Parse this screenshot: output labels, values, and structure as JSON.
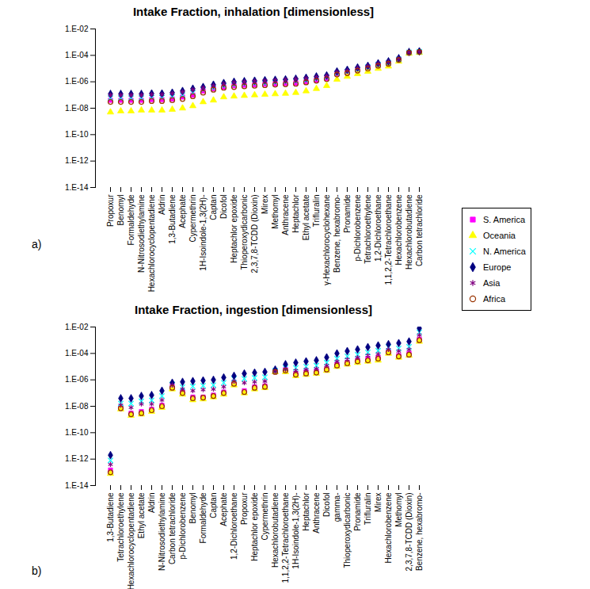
{
  "chart_data": [
    {
      "type": "scatter",
      "title": "Intake Fraction, inhalation [dimensionless]",
      "annotations": [
        "a)"
      ],
      "log": "y",
      "legend": "right",
      "ylim": [
        1e-14,
        0.01
      ],
      "yticks": [
        {
          "value": 1e-14,
          "label": "1.E-14"
        },
        {
          "value": 1e-12,
          "label": "1.E-12"
        },
        {
          "value": 1e-10,
          "label": "1.E-10"
        },
        {
          "value": 1e-08,
          "label": "1.E-08"
        },
        {
          "value": 1e-06,
          "label": "1.E-06"
        },
        {
          "value": 0.0001,
          "label": "1.E-04"
        },
        {
          "value": 0.01,
          "label": "1.E-02"
        }
      ],
      "categories": [
        "Propoxur",
        "Benomyl",
        "Formaldehyde",
        "N-Nitrosodiethylamine",
        "Hexachlorocyclopentadiene",
        "Aldrin",
        "1,3-Butadiene",
        "Acephate",
        "Cypermethrin",
        "1H-Isoindole-1,3(2H)-",
        "Captan",
        "Dicofol",
        "Heptachlor epoxide",
        "Thioperoxydicarbonic",
        "2,3,7,8-TCDD (Dioxin)",
        "Mirex",
        "Methomyl",
        "Anthracene",
        "Heptachlor",
        "Ethyl acetate",
        "Trifluralin",
        "γ-Hexachlorocyclohexane",
        "Benzene, hexabromo-",
        "Pronamide",
        "p-Dichlorobenzene",
        "Tetrachloroethylene",
        "1,2-Dichloroethane",
        "1,1,2,2-Tetrachloroethane",
        "Hexachlorobenzene",
        "Hexachlorobutadiene",
        "Carbon tetrachloride"
      ],
      "series": [
        {
          "name": "S. America",
          "color": "#ff00ff",
          "marker": "square",
          "values": [
            4e-08,
            4e-08,
            4e-08,
            4e-08,
            4.5e-08,
            4.5e-08,
            5e-08,
            7e-08,
            1e-07,
            2e-07,
            3e-07,
            4e-07,
            5e-07,
            5.5e-07,
            6e-07,
            6.5e-07,
            7e-07,
            7.5e-07,
            8e-07,
            1e-06,
            1.3e-06,
            1.8e-06,
            4e-06,
            5e-06,
            8e-06,
            1.1e-05,
            1.7e-05,
            2.5e-05,
            5e-05,
            0.00016,
            0.00018
          ]
        },
        {
          "name": "Oceania",
          "color": "#ffff00",
          "marker": "triangle",
          "values": [
            5e-09,
            6e-09,
            6e-09,
            7e-09,
            7e-09,
            7e-09,
            8e-09,
            1e-08,
            1.5e-08,
            3e-08,
            4e-08,
            7e-08,
            8e-08,
            9e-08,
            1e-07,
            1.1e-07,
            1.2e-07,
            1.3e-07,
            1.5e-07,
            2e-07,
            3e-07,
            5e-07,
            1.5e-06,
            2.5e-06,
            4e-06,
            6e-06,
            1e-05,
            1.5e-05,
            3.5e-05,
            0.00014,
            0.00016
          ]
        },
        {
          "name": "N. America",
          "color": "#00ffff",
          "marker": "x",
          "values": [
            6e-08,
            6e-08,
            6e-08,
            6e-08,
            6.5e-08,
            6.5e-08,
            7.5e-08,
            1e-07,
            1.5e-07,
            2.5e-07,
            3.5e-07,
            5e-07,
            6e-07,
            7e-07,
            7.5e-07,
            8e-07,
            9e-07,
            1e-06,
            1.1e-06,
            1.3e-06,
            1.7e-06,
            2.2e-06,
            4.5e-06,
            6e-06,
            9e-06,
            1.3e-05,
            2e-05,
            2.8e-05,
            5e-05,
            0.00017,
            0.00019
          ]
        },
        {
          "name": "Europe",
          "color": "#000080",
          "marker": "diamond",
          "values": [
            1.2e-07,
            1.2e-07,
            1.2e-07,
            1.2e-07,
            1.3e-07,
            1.3e-07,
            1.5e-07,
            2e-07,
            3e-07,
            4e-07,
            6e-07,
            8e-07,
            1e-06,
            1.1e-06,
            1.2e-06,
            1.3e-06,
            1.4e-06,
            1.5e-06,
            1.7e-06,
            2e-06,
            2.5e-06,
            3e-06,
            6e-06,
            8e-06,
            1.2e-05,
            1.6e-05,
            2.5e-05,
            3.5e-05,
            6e-05,
            0.00018,
            0.0002
          ]
        },
        {
          "name": "Asia",
          "color": "#800080",
          "marker": "asterisk",
          "values": [
            1e-07,
            1e-07,
            1e-07,
            1e-07,
            1.1e-07,
            1.1e-07,
            1.3e-07,
            1.7e-07,
            2.5e-07,
            3.5e-07,
            5e-07,
            7e-07,
            9e-07,
            1e-06,
            1.1e-06,
            1.2e-06,
            1.3e-06,
            1.4e-06,
            1.6e-06,
            1.8e-06,
            2.2e-06,
            2.7e-06,
            5.5e-06,
            7e-06,
            1.1e-05,
            1.5e-05,
            2.3e-05,
            3.2e-05,
            5.5e-05,
            0.00017,
            0.00019
          ]
        },
        {
          "name": "Africa",
          "color": "#993300",
          "marker": "circle-open",
          "values": [
            3e-08,
            3e-08,
            3e-08,
            3e-08,
            3.5e-08,
            3.5e-08,
            4e-08,
            5e-08,
            8e-08,
            1.5e-07,
            2.5e-07,
            3.5e-07,
            4e-07,
            4.5e-07,
            5e-07,
            5.5e-07,
            6e-07,
            6.5e-07,
            7e-07,
            9e-07,
            1.2e-06,
            1.6e-06,
            3.5e-06,
            4.5e-06,
            7e-06,
            1e-05,
            1.6e-05,
            2.3e-05,
            4.5e-05,
            0.00016,
            0.00018
          ]
        }
      ]
    },
    {
      "type": "scatter",
      "title": "Intake Fraction, ingestion [dimensionless]",
      "annotations": [
        "b)"
      ],
      "log": "y",
      "ylim": [
        1e-14,
        0.01
      ],
      "yticks": [
        {
          "value": 1e-14,
          "label": "1.E-14"
        },
        {
          "value": 1e-12,
          "label": "1.E-12"
        },
        {
          "value": 1e-10,
          "label": "1.E-10"
        },
        {
          "value": 1e-08,
          "label": "1.E-08"
        },
        {
          "value": 1e-06,
          "label": "1.E-06"
        },
        {
          "value": 0.0001,
          "label": "1.E-04"
        },
        {
          "value": 0.01,
          "label": "1.E-02"
        }
      ],
      "categories": [
        "1,3-Butadiene",
        "Tetrachloroethylene",
        "Hexachlorocyclopentadiene",
        "Ethyl acetate",
        "Aldrin",
        "N-Nitrosodiethylamine",
        "Carbon tetrachloride",
        "p-Dichlorobenzene",
        "Benomyl",
        "Formaldehyde",
        "Captan",
        "Acephate",
        "1,2-Dichloroethane",
        "Propoxur",
        "Heptachlor epoxide",
        "Cypermethrin",
        "Hexachlorobutadiene",
        "1,1,2,2-Tetrachloroethane",
        "1H-Isoindole-1,3(2H)-",
        "Heptachlor",
        "Anthracene",
        "Dicofol",
        "gamma-",
        "Thioperoxydicarbonic",
        "Pronamide",
        "Trifluralin",
        "Mirex",
        "Hexachlorobenzene",
        "Methomyl",
        "2,3,7,8-TCDD (Dioxin)",
        "Benzene, hexabromo-"
      ],
      "series": [
        {
          "name": "S. America",
          "color": "#ff00ff",
          "marker": "square",
          "values": [
            1.5e-13,
            9e-09,
            3e-09,
            4e-09,
            6e-09,
            1.2e-08,
            3e-07,
            1.2e-07,
            5e-08,
            5e-08,
            7e-08,
            1.2e-07,
            6e-07,
            1.5e-07,
            3e-07,
            3.5e-07,
            4e-06,
            6e-06,
            3e-06,
            4e-06,
            4.5e-06,
            7e-06,
            1.5e-05,
            2e-05,
            3e-05,
            4e-05,
            5e-05,
            0.00015,
            7e-05,
            0.0001,
            0.0012
          ]
        },
        {
          "name": "Oceania",
          "color": "#ffff00",
          "marker": "triangle",
          "values": [
            8e-14,
            6e-09,
            2e-09,
            2.5e-09,
            4e-09,
            8e-09,
            2e-07,
            8e-08,
            3e-08,
            3.5e-08,
            5e-08,
            8e-08,
            4e-07,
            1e-07,
            2e-07,
            2.5e-07,
            4e-06,
            4e-06,
            2e-06,
            2.5e-06,
            3e-06,
            5e-06,
            1e-05,
            1.5e-05,
            2e-05,
            2.5e-05,
            3e-05,
            0.0001,
            5e-05,
            7e-05,
            0.0008
          ]
        },
        {
          "name": "N. America",
          "color": "#00ffff",
          "marker": "x",
          "values": [
            8e-13,
            1.6e-08,
            1.6e-08,
            2.4e-08,
            2.8e-08,
            6e-08,
            4.5e-07,
            2.8e-07,
            3.2e-07,
            3.6e-07,
            4e-07,
            6e-07,
            1.2e-06,
            1.2e-06,
            1.4e-06,
            1.6e-06,
            5e-06,
            8e-06,
            8e-06,
            1e-05,
            1.2e-05,
            2e-05,
            4e-05,
            6e-05,
            8e-05,
            0.00012,
            0.00016,
            0.0003,
            0.00024,
            0.00032,
            0.004
          ]
        },
        {
          "name": "Europe",
          "color": "#000080",
          "marker": "diamond",
          "values": [
            2e-12,
            4e-08,
            4e-08,
            6e-08,
            7e-08,
            1.5e-07,
            6e-07,
            7e-07,
            8e-07,
            9e-07,
            1e-06,
            1.5e-06,
            2e-06,
            3e-06,
            3.5e-06,
            4e-06,
            6e-06,
            1.5e-05,
            2e-05,
            2.5e-05,
            3e-05,
            5e-05,
            0.0001,
            0.00015,
            0.0002,
            0.0003,
            0.0004,
            0.0005,
            0.0006,
            0.0008,
            0.008
          ]
        },
        {
          "name": "Asia",
          "color": "#800080",
          "marker": "asterisk",
          "values": [
            4e-13,
            1.2e-08,
            8e-09,
            1.5e-08,
            1.5e-08,
            3e-08,
            4e-07,
            2e-07,
            1.5e-07,
            1.8e-07,
            2e-07,
            3e-07,
            8e-07,
            6e-07,
            7e-07,
            8e-07,
            4.5e-06,
            6e-06,
            5e-06,
            6e-06,
            7e-06,
            1.2e-05,
            2.5e-05,
            3.5e-05,
            5e-05,
            7e-05,
            9e-05,
            0.0002,
            0.00015,
            0.0002,
            0.0025
          ]
        },
        {
          "name": "Africa",
          "color": "#993300",
          "marker": "circle-open",
          "values": [
            1e-13,
            7e-09,
            2.5e-09,
            3e-09,
            5e-09,
            1e-08,
            2.5e-07,
            1e-07,
            4e-08,
            4.5e-08,
            6e-08,
            1e-07,
            5e-07,
            1.2e-07,
            2.5e-07,
            3e-07,
            4e-06,
            5e-06,
            2.5e-06,
            3e-06,
            3.5e-06,
            6e-06,
            1.2e-05,
            1.8e-05,
            2.5e-05,
            3e-05,
            4e-05,
            0.00012,
            6e-05,
            8e-05,
            0.001
          ]
        }
      ]
    }
  ]
}
